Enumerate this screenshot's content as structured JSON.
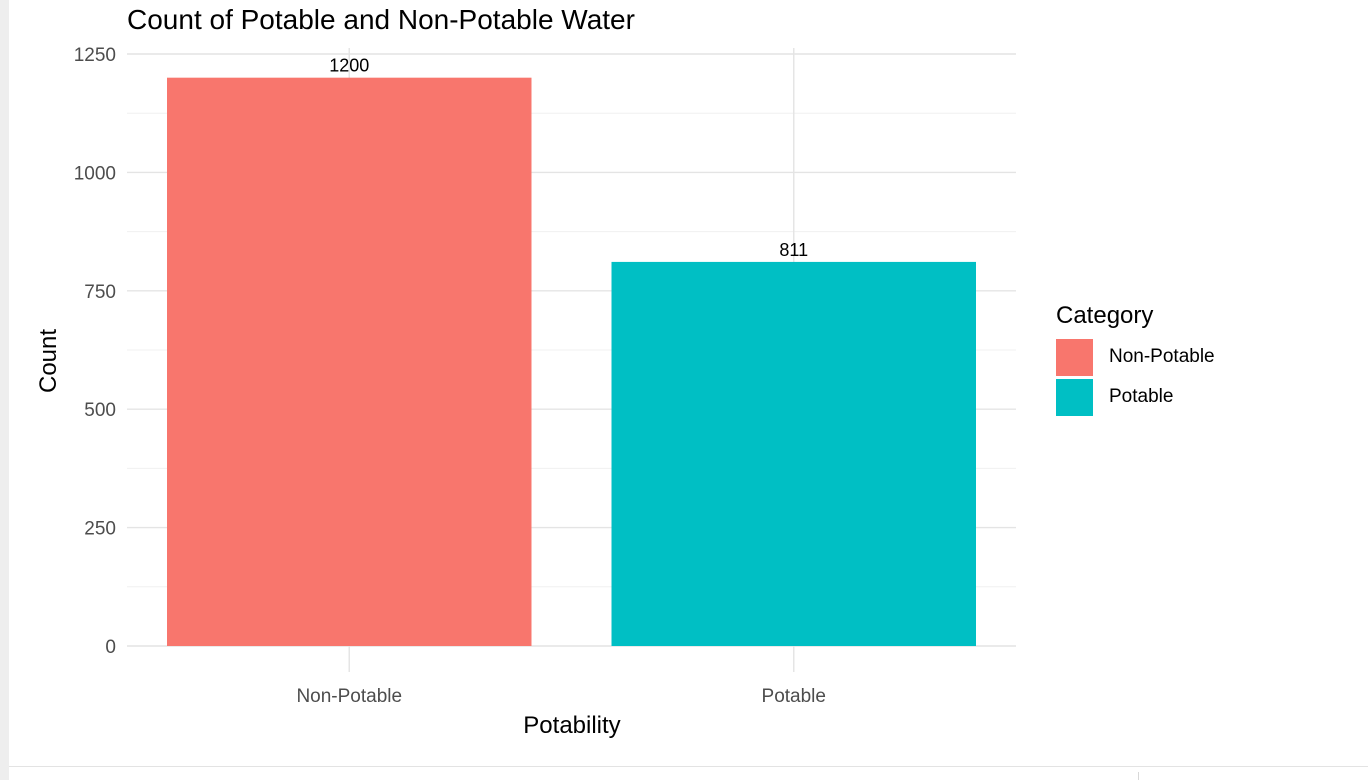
{
  "chart_data": {
    "type": "bar",
    "title": "Count of Potable and Non-Potable Water",
    "xlabel": "Potability",
    "ylabel": "Count",
    "categories": [
      "Non-Potable",
      "Potable"
    ],
    "values": [
      1200,
      811
    ],
    "data_labels": [
      "1200",
      "811"
    ],
    "colors": [
      "#F8766D",
      "#00BFC4"
    ],
    "ylim": [
      0,
      1250
    ],
    "yticks": [
      0,
      250,
      500,
      750,
      1000,
      1250
    ],
    "ytick_labels": [
      "0",
      "250",
      "500",
      "750",
      "1000",
      "1250"
    ],
    "grid": true,
    "legend": {
      "title": "Category",
      "placement": "right",
      "entries": [
        "Non-Potable",
        "Potable"
      ]
    }
  }
}
